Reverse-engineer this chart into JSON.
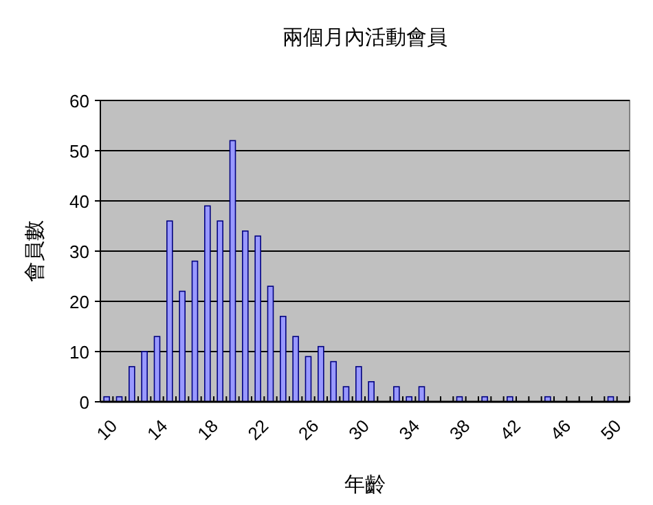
{
  "chart_data": {
    "type": "bar",
    "title": "兩個月內活動會員",
    "xlabel": "年齡",
    "ylabel": "會員數",
    "categories": [
      "10",
      null,
      null,
      null,
      "14",
      null,
      null,
      null,
      "18",
      null,
      null,
      null,
      "22",
      null,
      null,
      null,
      "26",
      null,
      null,
      null,
      "30",
      null,
      null,
      null,
      "34",
      null,
      null,
      null,
      "38",
      null,
      null,
      null,
      "42",
      null,
      null,
      null,
      "46",
      null,
      null,
      null,
      "50",
      null
    ],
    "values": [
      1,
      1,
      7,
      10,
      13,
      36,
      22,
      28,
      39,
      36,
      52,
      34,
      33,
      23,
      17,
      13,
      9,
      11,
      8,
      3,
      7,
      4,
      0,
      3,
      1,
      3,
      0,
      0,
      1,
      0,
      1,
      0,
      1,
      0,
      0,
      1,
      0,
      0,
      0,
      0,
      1,
      0
    ],
    "color": "#9999ff",
    "ylim": [
      0,
      60
    ],
    "yticks": [
      0,
      10,
      20,
      30,
      40,
      50,
      60
    ],
    "grid": "y"
  }
}
